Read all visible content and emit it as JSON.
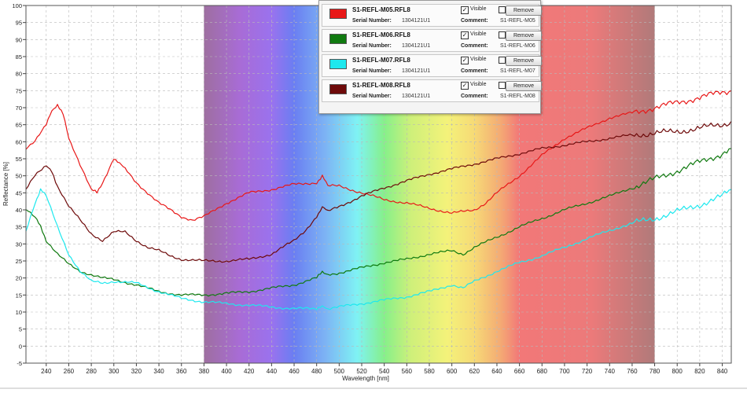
{
  "chart_data": {
    "type": "line",
    "xlabel": "Wavelength [nm]",
    "ylabel": "Reflectance [%]",
    "xlim": [
      222,
      848
    ],
    "ylim": [
      -5,
      100
    ],
    "grid": true,
    "x_ticks": [
      240,
      260,
      280,
      300,
      320,
      340,
      360,
      380,
      400,
      420,
      440,
      460,
      480,
      500,
      520,
      540,
      560,
      580,
      600,
      620,
      640,
      660,
      680,
      700,
      720,
      740,
      760,
      780,
      800,
      820,
      840
    ],
    "y_ticks": [
      -5,
      0,
      5,
      10,
      15,
      20,
      25,
      30,
      35,
      40,
      45,
      50,
      55,
      60,
      65,
      70,
      75,
      80,
      85,
      90,
      95,
      100
    ],
    "visible_spectrum_band": [
      380,
      780
    ],
    "series": [
      {
        "name": "S1-REFL-M05.RFL8",
        "color": "#e81818",
        "x": [
          222,
          230,
          240,
          245,
          250,
          255,
          260,
          270,
          280,
          285,
          290,
          300,
          305,
          310,
          320,
          330,
          340,
          350,
          360,
          370,
          380,
          400,
          420,
          440,
          460,
          480,
          485,
          490,
          500,
          520,
          540,
          560,
          580,
          600,
          610,
          620,
          630,
          640,
          660,
          680,
          700,
          720,
          740,
          760,
          780,
          800,
          820,
          840,
          848
        ],
        "y": [
          58,
          60,
          65,
          69,
          71,
          68,
          61,
          53,
          46,
          45,
          48,
          55,
          54,
          52,
          48,
          45,
          42,
          40,
          38,
          37,
          38,
          42,
          45,
          46,
          47.5,
          48,
          50,
          47,
          47,
          45,
          43,
          42,
          40.5,
          39,
          39.5,
          40,
          42,
          45,
          50,
          56,
          61,
          64,
          67,
          68.5,
          70,
          71.5,
          73,
          74.5,
          75
        ]
      },
      {
        "name": "S1-REFL-M06.RFL8",
        "color": "#107a10",
        "x": [
          222,
          230,
          235,
          240,
          250,
          260,
          270,
          280,
          290,
          300,
          320,
          340,
          360,
          380,
          400,
          420,
          440,
          460,
          480,
          485,
          490,
          500,
          520,
          540,
          560,
          580,
          600,
          610,
          620,
          640,
          660,
          680,
          700,
          720,
          740,
          760,
          780,
          800,
          820,
          840,
          848
        ],
        "y": [
          40,
          38,
          35,
          31,
          27,
          24,
          22,
          21,
          20,
          19.5,
          18,
          16,
          15,
          15,
          15.5,
          16,
          17,
          18,
          20,
          22,
          21,
          21.5,
          23,
          24.5,
          25.5,
          27,
          28,
          27,
          29,
          32,
          35,
          37.5,
          40,
          42,
          44,
          46.5,
          49,
          51.5,
          54,
          56.5,
          58
        ]
      },
      {
        "name": "S1-REFL-M07.RFL8",
        "color": "#1ee8ee",
        "x": [
          222,
          230,
          235,
          240,
          250,
          260,
          270,
          280,
          290,
          300,
          320,
          340,
          360,
          380,
          400,
          420,
          440,
          460,
          480,
          485,
          490,
          500,
          520,
          540,
          560,
          580,
          600,
          610,
          620,
          640,
          660,
          680,
          700,
          720,
          740,
          760,
          780,
          800,
          820,
          840,
          848
        ],
        "y": [
          34,
          42,
          46,
          44,
          35,
          27,
          22,
          19,
          18.5,
          19,
          18.5,
          16,
          14,
          13,
          12.5,
          12,
          11.5,
          11,
          11,
          11.5,
          11,
          11.5,
          12.5,
          13.5,
          14.5,
          16,
          18,
          17,
          19,
          22,
          24.5,
          26.5,
          29,
          31.5,
          34,
          36,
          37.5,
          39.5,
          41.5,
          44,
          46
        ]
      },
      {
        "name": "S1-REFL-M08.RFL8",
        "color": "#6e0a0a",
        "x": [
          222,
          230,
          240,
          245,
          250,
          260,
          270,
          280,
          290,
          300,
          310,
          320,
          330,
          340,
          350,
          360,
          380,
          400,
          420,
          440,
          460,
          470,
          480,
          485,
          490,
          500,
          520,
          540,
          560,
          580,
          600,
          620,
          640,
          660,
          680,
          700,
          720,
          740,
          760,
          780,
          800,
          820,
          840,
          848
        ],
        "y": [
          46,
          50,
          53,
          51,
          47,
          41,
          37,
          33,
          31,
          33.5,
          33.5,
          31,
          29,
          28,
          26.5,
          25.5,
          25,
          25,
          25.5,
          27,
          31,
          34,
          38,
          41,
          39.5,
          41,
          44,
          46.5,
          48.5,
          50.5,
          52,
          53.5,
          55,
          56.5,
          58,
          59,
          60,
          61,
          62,
          62.5,
          63,
          64,
          65,
          66
        ]
      }
    ]
  },
  "legend": {
    "serial_label": "Serial Number:",
    "comment_label": "Comment:",
    "visible_label": "Visible",
    "remove_label": "Remove",
    "entries": [
      {
        "file": "S1-REFL-M05.RFL8",
        "serial": "1304121U1",
        "comment": "S1-REFL-M05",
        "color": "#e81818",
        "visible": "✓"
      },
      {
        "file": "S1-REFL-M06.RFL8",
        "serial": "1304121U1",
        "comment": "S1-REFL-M06",
        "color": "#107a10",
        "visible": "✓"
      },
      {
        "file": "S1-REFL-M07.RFL8",
        "serial": "1304121U1",
        "comment": "S1-REFL-M07",
        "color": "#1ee8ee",
        "visible": "✓"
      },
      {
        "file": "S1-REFL-M08.RFL8",
        "serial": "1304121U1",
        "comment": "S1-REFL-M08",
        "color": "#6e0a0a",
        "visible": "✓"
      }
    ]
  }
}
